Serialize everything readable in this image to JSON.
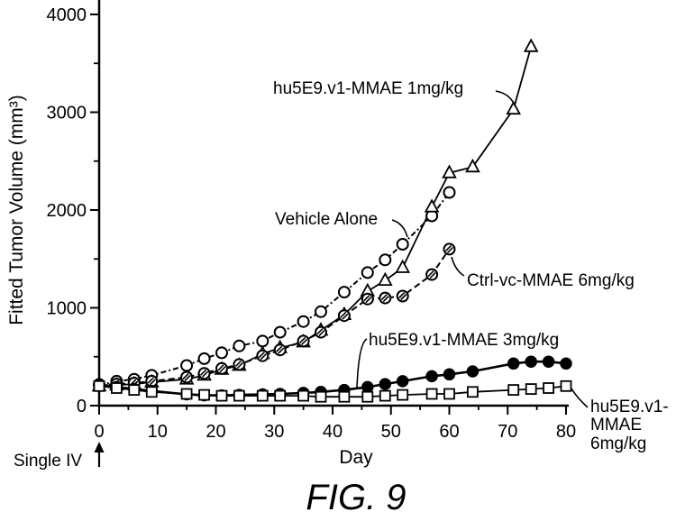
{
  "chart_data": {
    "type": "line",
    "title": "",
    "xlabel": "Day",
    "ylabel": "Fitted Tumor Volume (mm³)",
    "xlim": [
      0,
      80
    ],
    "ylim": [
      0,
      4000
    ],
    "xticks": [
      0,
      10,
      20,
      30,
      40,
      50,
      60,
      70,
      80
    ],
    "yticks": [
      0,
      1000,
      2000,
      3000,
      4000
    ],
    "grid": false,
    "series": [
      {
        "label_lines": [
          "Vehicle Alone"
        ],
        "x": [
          0,
          3,
          6,
          9,
          15,
          18,
          21,
          24,
          28,
          31,
          35,
          38,
          42,
          46,
          49,
          52,
          57,
          60
        ],
        "y": [
          210,
          250,
          270,
          310,
          410,
          480,
          540,
          610,
          660,
          750,
          860,
          960,
          1160,
          1360,
          1490,
          1650,
          1940,
          2180
        ]
      },
      {
        "label_lines": [
          "hu5E9.v1-MMAE 1mg/kg"
        ],
        "x": [
          0,
          3,
          6,
          9,
          15,
          18,
          21,
          24,
          28,
          31,
          35,
          38,
          42,
          46,
          49,
          52,
          57,
          60,
          64,
          71,
          74
        ],
        "y": [
          200,
          210,
          220,
          240,
          270,
          310,
          370,
          410,
          530,
          590,
          650,
          770,
          930,
          1170,
          1280,
          1410,
          2030,
          2380,
          2440,
          3030,
          3670
        ]
      },
      {
        "label_lines": [
          "Ctrl-vc-MMAE 6mg/kg"
        ],
        "x": [
          0,
          3,
          6,
          9,
          15,
          18,
          21,
          24,
          28,
          31,
          35,
          38,
          42,
          46,
          49,
          52,
          57,
          60
        ],
        "y": [
          210,
          220,
          230,
          250,
          290,
          330,
          380,
          420,
          510,
          570,
          660,
          750,
          920,
          1090,
          1100,
          1120,
          1340,
          1600
        ]
      },
      {
        "label_lines": [
          "hu5E9.v1-MMAE 3mg/kg"
        ],
        "x": [
          0,
          3,
          6,
          9,
          15,
          18,
          21,
          24,
          28,
          31,
          35,
          38,
          42,
          46,
          49,
          52,
          57,
          60,
          64,
          71,
          74,
          77,
          80
        ],
        "y": [
          220,
          190,
          170,
          150,
          115,
          105,
          105,
          110,
          115,
          120,
          130,
          140,
          160,
          190,
          220,
          250,
          300,
          320,
          350,
          430,
          450,
          450,
          430
        ]
      },
      {
        "label_lines": [
          "hu5E9.v1-",
          "MMAE",
          "6mg/kg"
        ],
        "x": [
          0,
          3,
          6,
          9,
          15,
          18,
          21,
          24,
          28,
          31,
          35,
          38,
          42,
          46,
          49,
          52,
          57,
          60,
          64,
          71,
          74,
          77,
          80
        ],
        "y": [
          200,
          180,
          160,
          140,
          120,
          110,
          100,
          100,
          100,
          100,
          100,
          90,
          90,
          90,
          100,
          110,
          120,
          120,
          140,
          160,
          170,
          180,
          200
        ]
      }
    ],
    "annotations": [
      {
        "text": "Single IV",
        "x": 0
      }
    ]
  },
  "figure": {
    "caption": "FIG. 9"
  }
}
